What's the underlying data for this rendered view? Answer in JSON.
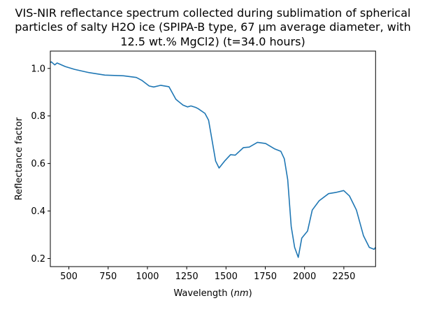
{
  "chart_data": {
    "type": "line",
    "title_lines": [
      "VIS-NIR reflectance spectrum collected during sublimation of spherical",
      "particles of salty H2O ice (SPIPA-B type, 67 µm average diameter, with",
      "12.5 wt.% MgCl2) (t=34.0 hours)"
    ],
    "xlabel_prefix": "Wavelength (",
    "xlabel_unit": "nm",
    "xlabel_suffix": ")",
    "ylabel": "Reflectance factor",
    "xlim": [
      382,
      2452
    ],
    "ylim": [
      0.166,
      1.073
    ],
    "xticks": [
      500,
      750,
      1000,
      1250,
      1500,
      1750,
      2000,
      2250
    ],
    "yticks": [
      0.2,
      0.4,
      0.6,
      0.8,
      1.0
    ],
    "ytick_labels": [
      "0.2",
      "0.4",
      "0.6",
      "0.8",
      "1.0"
    ],
    "grid": false,
    "line_color": "#1f77b4",
    "series": [
      {
        "x": [
          382,
          388,
          410,
          425,
          477,
          536,
          625,
          729,
          848,
          929,
          966,
          1011,
          1040,
          1085,
          1137,
          1181,
          1226,
          1255,
          1277,
          1307,
          1322,
          1366,
          1389,
          1411,
          1434,
          1456,
          1491,
          1529,
          1559,
          1611,
          1648,
          1700,
          1752,
          1811,
          1849,
          1871,
          1893,
          1915,
          1937,
          1960,
          1982,
          2019,
          2049,
          2093,
          2153,
          2197,
          2249,
          2286,
          2330,
          2375,
          2412,
          2442,
          2452
        ],
        "y": [
          1.024,
          1.028,
          1.015,
          1.023,
          1.008,
          0.996,
          0.983,
          0.972,
          0.969,
          0.962,
          0.949,
          0.926,
          0.922,
          0.929,
          0.923,
          0.87,
          0.846,
          0.838,
          0.842,
          0.836,
          0.831,
          0.811,
          0.782,
          0.699,
          0.61,
          0.581,
          0.61,
          0.637,
          0.635,
          0.667,
          0.669,
          0.689,
          0.684,
          0.661,
          0.651,
          0.62,
          0.532,
          0.335,
          0.247,
          0.205,
          0.286,
          0.316,
          0.404,
          0.443,
          0.473,
          0.478,
          0.486,
          0.463,
          0.404,
          0.296,
          0.247,
          0.239,
          0.247
        ]
      }
    ]
  }
}
